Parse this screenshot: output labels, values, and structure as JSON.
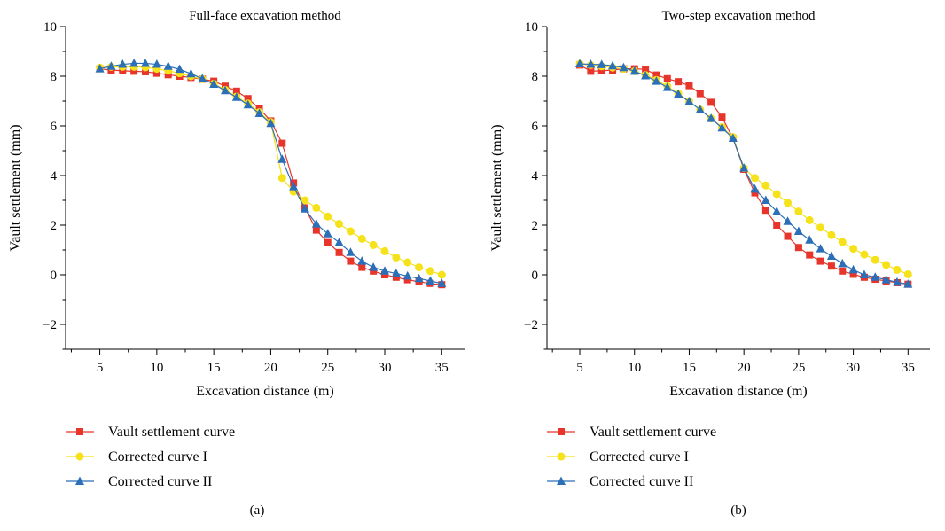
{
  "chart_data": [
    {
      "type": "line",
      "title": "Full-face excavation method",
      "xlabel": "Excavation distance (m)",
      "ylabel": "Vault settlement (mm)",
      "panel_label": "(a)",
      "xlim": [
        2,
        37
      ],
      "ylim": [
        -3,
        10
      ],
      "xticks": [
        5,
        10,
        15,
        20,
        25,
        30,
        35
      ],
      "yticks": [
        -2,
        0,
        2,
        4,
        6,
        8,
        10
      ],
      "ytick_labels": [
        "−2",
        "0",
        "2",
        "4",
        "6",
        "8",
        "10"
      ],
      "grid": false,
      "legend_position": "below",
      "x": [
        5,
        6,
        7,
        8,
        9,
        10,
        11,
        12,
        13,
        14,
        15,
        16,
        17,
        18,
        19,
        20,
        21,
        22,
        23,
        24,
        25,
        26,
        27,
        28,
        29,
        30,
        31,
        32,
        33,
        34,
        35
      ],
      "series": [
        {
          "name": "Vault settlement curve",
          "color": "#e8352b",
          "marker": "square",
          "values": [
            8.3,
            8.25,
            8.22,
            8.2,
            8.18,
            8.12,
            8.06,
            8.0,
            7.95,
            7.88,
            7.8,
            7.6,
            7.4,
            7.1,
            6.7,
            6.2,
            5.3,
            3.7,
            2.7,
            1.8,
            1.3,
            0.9,
            0.55,
            0.3,
            0.15,
            0.0,
            -0.1,
            -0.2,
            -0.28,
            -0.35,
            -0.4
          ]
        },
        {
          "name": "Corrected curve I",
          "color": "#f5e21a",
          "marker": "circle",
          "values": [
            8.35,
            8.38,
            8.38,
            8.38,
            8.36,
            8.3,
            8.22,
            8.12,
            8.0,
            7.88,
            7.7,
            7.45,
            7.18,
            6.9,
            6.55,
            6.15,
            3.9,
            3.35,
            3.0,
            2.7,
            2.35,
            2.05,
            1.75,
            1.45,
            1.2,
            0.95,
            0.7,
            0.5,
            0.3,
            0.15,
            0.0
          ]
        },
        {
          "name": "Corrected curve II",
          "color": "#2b6fb8",
          "marker": "triangle",
          "values": [
            8.3,
            8.4,
            8.48,
            8.52,
            8.52,
            8.48,
            8.4,
            8.28,
            8.1,
            7.9,
            7.68,
            7.42,
            7.15,
            6.85,
            6.5,
            6.1,
            4.65,
            3.55,
            2.65,
            2.05,
            1.65,
            1.3,
            0.9,
            0.55,
            0.3,
            0.15,
            0.05,
            -0.05,
            -0.15,
            -0.25,
            -0.35
          ]
        }
      ]
    },
    {
      "type": "line",
      "title": "Two-step excavation method",
      "xlabel": "Excavation distance (m)",
      "ylabel": "Vault settlement (mm)",
      "panel_label": "(b)",
      "xlim": [
        2,
        37
      ],
      "ylim": [
        -3,
        10
      ],
      "xticks": [
        5,
        10,
        15,
        20,
        25,
        30,
        35
      ],
      "yticks": [
        -2,
        0,
        2,
        4,
        6,
        8,
        10
      ],
      "ytick_labels": [
        "−2",
        "0",
        "2",
        "4",
        "6",
        "8",
        "10"
      ],
      "grid": false,
      "legend_position": "below",
      "x": [
        5,
        6,
        7,
        8,
        9,
        10,
        11,
        12,
        13,
        14,
        15,
        16,
        17,
        18,
        19,
        20,
        21,
        22,
        23,
        24,
        25,
        26,
        27,
        28,
        29,
        30,
        31,
        32,
        33,
        34,
        35
      ],
      "series": [
        {
          "name": "Vault settlement curve",
          "color": "#e8352b",
          "marker": "square",
          "values": [
            8.45,
            8.2,
            8.22,
            8.25,
            8.3,
            8.3,
            8.28,
            8.05,
            7.9,
            7.78,
            7.62,
            7.3,
            6.95,
            6.35,
            5.5,
            4.25,
            3.3,
            2.6,
            2.0,
            1.55,
            1.1,
            0.8,
            0.55,
            0.35,
            0.15,
            0.02,
            -0.1,
            -0.18,
            -0.25,
            -0.32,
            -0.38
          ]
        },
        {
          "name": "Corrected curve I",
          "color": "#f5e21a",
          "marker": "circle",
          "values": [
            8.5,
            8.45,
            8.4,
            8.35,
            8.3,
            8.2,
            8.05,
            7.85,
            7.6,
            7.3,
            7.0,
            6.65,
            6.3,
            5.95,
            5.55,
            4.3,
            3.9,
            3.6,
            3.25,
            2.9,
            2.55,
            2.2,
            1.9,
            1.6,
            1.32,
            1.05,
            0.82,
            0.6,
            0.4,
            0.2,
            0.02
          ]
        },
        {
          "name": "Corrected curve II",
          "color": "#2b6fb8",
          "marker": "triangle",
          "values": [
            8.5,
            8.48,
            8.47,
            8.42,
            8.35,
            8.2,
            8.02,
            7.8,
            7.55,
            7.28,
            6.98,
            6.65,
            6.3,
            5.92,
            5.5,
            4.3,
            3.45,
            3.0,
            2.55,
            2.15,
            1.75,
            1.4,
            1.05,
            0.75,
            0.45,
            0.2,
            0.0,
            -0.1,
            -0.2,
            -0.3,
            -0.38
          ]
        }
      ]
    }
  ]
}
